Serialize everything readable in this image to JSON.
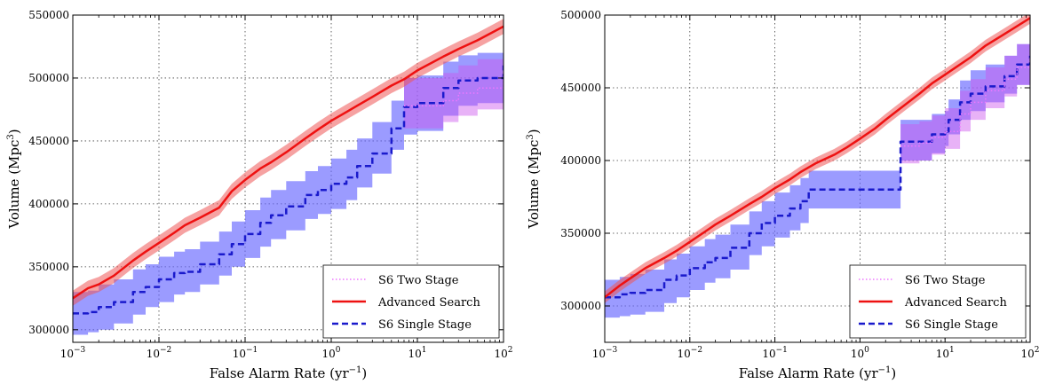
{
  "colors": {
    "two_stage_band": "#cc55ee",
    "two_stage_line": "#ee77ff",
    "advanced_band": "#ee5555",
    "advanced_line": "#ee1111",
    "single_band": "#6666ff",
    "single_line": "#1a1acc"
  },
  "chart_data": [
    {
      "type": "line",
      "xlabel": "False Alarm Rate (yr−1)",
      "ylabel": "Volume (Mpc3)",
      "xscale": "log",
      "xlim": [
        0.001,
        100
      ],
      "ylim": [
        290000,
        550000
      ],
      "xticks": [
        0.001,
        0.01,
        0.1,
        1,
        10,
        100
      ],
      "xtick_labels": [
        {
          "base": "10",
          "exp": "−3"
        },
        {
          "base": "10",
          "exp": "−2"
        },
        {
          "base": "10",
          "exp": "−1"
        },
        {
          "base": "10",
          "exp": "0"
        },
        {
          "base": "10",
          "exp": "1"
        },
        {
          "base": "10",
          "exp": "2"
        }
      ],
      "yticks": [
        300000,
        350000,
        400000,
        450000,
        500000,
        550000
      ],
      "ytick_labels": [
        "300000",
        "350000",
        "400000",
        "450000",
        "500000",
        "550000"
      ],
      "grid": true,
      "legend_position": "bottom-right",
      "series": [
        {
          "name": "S6 Two Stage",
          "style": "dotted",
          "x": [
            7,
            10,
            20,
            30,
            50,
            100
          ],
          "y": [
            478000,
            478000,
            482000,
            488000,
            492000,
            505000
          ],
          "lower": [
            460000,
            460000,
            465000,
            470000,
            475000,
            485000
          ],
          "upper": [
            500000,
            500000,
            504000,
            510000,
            515000,
            530000
          ]
        },
        {
          "name": "Advanced Search",
          "style": "solid",
          "x": [
            0.001,
            0.0015,
            0.002,
            0.003,
            0.005,
            0.007,
            0.01,
            0.015,
            0.02,
            0.03,
            0.05,
            0.07,
            0.1,
            0.15,
            0.2,
            0.3,
            0.5,
            0.7,
            1,
            1.5,
            2,
            3,
            5,
            7,
            10,
            20,
            30,
            50,
            100
          ],
          "y": [
            325000,
            333000,
            336000,
            343000,
            355000,
            362000,
            369000,
            377000,
            383000,
            389000,
            397000,
            410000,
            419000,
            428000,
            433000,
            441000,
            452000,
            459000,
            466000,
            473000,
            478000,
            485000,
            494000,
            499000,
            506000,
            517000,
            523000,
            530000,
            541000
          ],
          "band": 6000
        },
        {
          "name": "S6 Single Stage",
          "style": "dashed",
          "x": [
            0.001,
            0.0015,
            0.002,
            0.003,
            0.005,
            0.007,
            0.01,
            0.015,
            0.02,
            0.03,
            0.05,
            0.07,
            0.1,
            0.15,
            0.2,
            0.3,
            0.5,
            0.7,
            1,
            1.5,
            2,
            3,
            5,
            7,
            10,
            20,
            30,
            50,
            100
          ],
          "y": [
            313000,
            314000,
            318000,
            322000,
            330000,
            334000,
            340000,
            345000,
            346000,
            352000,
            360000,
            368000,
            376000,
            385000,
            391000,
            398000,
            407000,
            411000,
            416000,
            421000,
            430000,
            440000,
            460000,
            477000,
            480000,
            492000,
            498000,
            500000,
            510000
          ],
          "lower": [
            296000,
            298000,
            300000,
            305000,
            312000,
            318000,
            322000,
            328000,
            330000,
            336000,
            343000,
            350000,
            357000,
            366000,
            372000,
            379000,
            388000,
            392000,
            396000,
            403000,
            413000,
            424000,
            443000,
            455000,
            458000,
            470000,
            478000,
            480000,
            480000
          ],
          "upper": [
            330000,
            331000,
            336000,
            340000,
            348000,
            352000,
            358000,
            362000,
            364000,
            370000,
            378000,
            386000,
            395000,
            405000,
            411000,
            418000,
            426000,
            430000,
            436000,
            443000,
            452000,
            465000,
            482000,
            500000,
            502000,
            513000,
            518000,
            520000,
            532000
          ]
        }
      ]
    },
    {
      "type": "line",
      "xlabel": "False Alarm Rate (yr−1)",
      "ylabel": "Volume (Mpc3)",
      "xscale": "log",
      "xlim": [
        0.001,
        100
      ],
      "ylim": [
        275000,
        500000
      ],
      "xticks": [
        0.001,
        0.01,
        0.1,
        1,
        10,
        100
      ],
      "xtick_labels": [
        {
          "base": "10",
          "exp": "−3"
        },
        {
          "base": "10",
          "exp": "−2"
        },
        {
          "base": "10",
          "exp": "−1"
        },
        {
          "base": "10",
          "exp": "0"
        },
        {
          "base": "10",
          "exp": "1"
        },
        {
          "base": "10",
          "exp": "2"
        }
      ],
      "yticks": [
        300000,
        350000,
        400000,
        450000,
        500000
      ],
      "ytick_labels": [
        "300000",
        "350000",
        "400000",
        "450000",
        "500000"
      ],
      "grid": true,
      "legend_position": "bottom-right",
      "series": [
        {
          "name": "S6 Two Stage",
          "style": "dotted",
          "x": [
            3,
            5,
            7,
            10,
            15,
            20,
            30,
            50,
            70,
            100
          ],
          "y": [
            410000,
            412000,
            416000,
            420000,
            432000,
            440000,
            448000,
            456000,
            464000,
            472000
          ],
          "lower": [
            398000,
            400000,
            404000,
            408000,
            420000,
            428000,
            436000,
            444000,
            452000,
            458000
          ],
          "upper": [
            425000,
            427000,
            431000,
            436000,
            448000,
            456000,
            464000,
            472000,
            480000,
            487000
          ]
        },
        {
          "name": "Advanced Search",
          "style": "solid",
          "x": [
            0.001,
            0.0015,
            0.002,
            0.003,
            0.005,
            0.007,
            0.01,
            0.015,
            0.02,
            0.03,
            0.05,
            0.07,
            0.1,
            0.15,
            0.2,
            0.3,
            0.5,
            0.7,
            1,
            1.5,
            2,
            3,
            5,
            7,
            10,
            20,
            30,
            50,
            100
          ],
          "y": [
            306000,
            314000,
            319000,
            326000,
            333000,
            338000,
            344000,
            351000,
            356000,
            362000,
            370000,
            375000,
            381000,
            387000,
            392000,
            398000,
            404000,
            409000,
            415000,
            422000,
            428000,
            436000,
            446000,
            453000,
            459000,
            471000,
            479000,
            487000,
            498000
          ],
          "band": 4000
        },
        {
          "name": "S6 Single Stage",
          "style": "dashed",
          "x": [
            0.001,
            0.0015,
            0.002,
            0.003,
            0.005,
            0.007,
            0.01,
            0.015,
            0.02,
            0.03,
            0.05,
            0.07,
            0.1,
            0.15,
            0.2,
            0.25,
            0.3,
            0.5,
            1,
            2,
            2.8,
            3,
            5,
            7,
            10,
            11,
            15,
            20,
            30,
            50,
            70,
            100
          ],
          "y": [
            306000,
            308000,
            309000,
            311000,
            318000,
            321000,
            326000,
            330000,
            333000,
            340000,
            350000,
            357000,
            362000,
            367000,
            372000,
            380000,
            380000,
            380000,
            380000,
            380000,
            380000,
            413000,
            413000,
            418000,
            420000,
            428000,
            440000,
            446000,
            451000,
            458000,
            466000,
            472000
          ],
          "lower": [
            292000,
            293000,
            294000,
            296000,
            302000,
            306000,
            311000,
            316000,
            319000,
            325000,
            335000,
            341000,
            347000,
            352000,
            357000,
            367000,
            367000,
            367000,
            367000,
            367000,
            367000,
            400000,
            400000,
            405000,
            410000,
            418000,
            428000,
            434000,
            440000,
            446000,
            452000,
            456000
          ],
          "upper": [
            318000,
            320000,
            322000,
            325000,
            332000,
            336000,
            341000,
            346000,
            349000,
            356000,
            365000,
            372000,
            378000,
            383000,
            388000,
            393000,
            393000,
            393000,
            393000,
            393000,
            393000,
            428000,
            428000,
            432000,
            434000,
            442000,
            455000,
            462000,
            466000,
            472000,
            480000,
            488000
          ]
        }
      ]
    }
  ]
}
